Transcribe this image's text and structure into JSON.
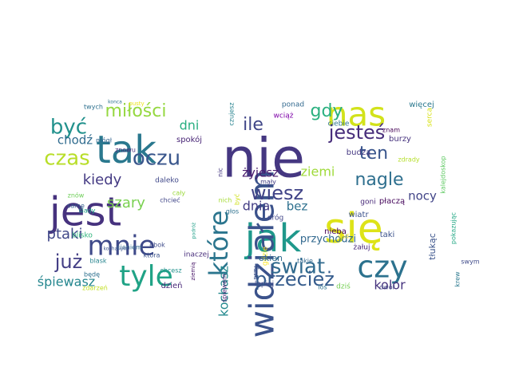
{
  "cloud": {
    "words": [
      {
        "text": "nie",
        "color": "#453781"
      },
      {
        "text": "się",
        "color": "#dde318"
      },
      {
        "text": "nas",
        "color": "#d2e21b"
      },
      {
        "text": "jest",
        "color": "#46327e"
      },
      {
        "text": "tak",
        "color": "#2a788e"
      },
      {
        "text": "jak",
        "color": "#1f988b"
      },
      {
        "text": "widziałem",
        "color": "#3b528b"
      },
      {
        "text": "czy",
        "color": "#2c728e"
      },
      {
        "text": "tyle",
        "color": "#20a386"
      },
      {
        "text": "mnie",
        "color": "#3e4989"
      },
      {
        "text": "które",
        "color": "#2b758e"
      },
      {
        "text": "oczu",
        "color": "#39568c"
      },
      {
        "text": "czas",
        "color": "#b8de29"
      },
      {
        "text": "być",
        "color": "#21918c"
      },
      {
        "text": "jesteś",
        "color": "#472d7b"
      },
      {
        "text": "świat",
        "color": "#306a8e"
      },
      {
        "text": "przecież",
        "color": "#365c8d"
      },
      {
        "text": "wiesz",
        "color": "#404387"
      },
      {
        "text": "nagle",
        "color": "#2e6f8e"
      },
      {
        "text": "ten",
        "color": "#39558c"
      },
      {
        "text": "miłości",
        "color": "#95d840"
      },
      {
        "text": "gdy",
        "color": "#2ab07f"
      },
      {
        "text": "już",
        "color": "#433e85"
      },
      {
        "text": "kiedy",
        "color": "#443a83"
      },
      {
        "text": "ile",
        "color": "#404688"
      },
      {
        "text": "ptaki",
        "color": "#3f4788"
      },
      {
        "text": "dni",
        "color": "#28ae80"
      },
      {
        "text": "szary",
        "color": "#7ad151"
      },
      {
        "text": "ziemi",
        "color": "#9fda3a"
      },
      {
        "text": "kolor",
        "color": "#46337e"
      },
      {
        "text": "kochasz",
        "color": "#23898e"
      },
      {
        "text": "żyjesz",
        "color": "#481a6c"
      },
      {
        "text": "dnia",
        "color": "#433d84"
      },
      {
        "text": "bez",
        "color": "#2d708e"
      },
      {
        "text": "nocy",
        "color": "#414487"
      },
      {
        "text": "śpiewasz",
        "color": "#24868e"
      },
      {
        "text": "chodź",
        "color": "#2f6b8e"
      },
      {
        "text": "przychodzi",
        "color": "#31688e"
      },
      {
        "text": "tłukąc",
        "color": "#3a538b"
      },
      {
        "text": "gdzie",
        "color": "#fde725"
      },
      {
        "text": "okien",
        "color": "#306a8e"
      },
      {
        "text": "nieba",
        "color": "#440154"
      },
      {
        "text": "dróg",
        "color": "#404588"
      },
      {
        "text": "wiatr",
        "color": "#3b528b"
      },
      {
        "text": "goni",
        "color": "#472878"
      },
      {
        "text": "płaczą",
        "color": "#46085c"
      },
      {
        "text": "budzą",
        "color": "#453882"
      },
      {
        "text": "burzy",
        "color": "#46327e"
      },
      {
        "text": "znam",
        "color": "#440154"
      },
      {
        "text": "taki",
        "color": "#3b528b"
      },
      {
        "text": "ciebie",
        "color": "#2c728e"
      },
      {
        "text": "wciąż",
        "color": "#7e03a8"
      },
      {
        "text": "ponad",
        "color": "#31688e"
      },
      {
        "text": "więcej",
        "color": "#2a788e"
      },
      {
        "text": "serca",
        "color": "#d8e219"
      },
      {
        "text": "kalejdoskop",
        "color": "#5ec962"
      },
      {
        "text": "zdrady",
        "color": "#b5de2b"
      },
      {
        "text": "czujesz",
        "color": "#26828e"
      },
      {
        "text": "spokój",
        "color": "#482576"
      },
      {
        "text": "znowu",
        "color": "#472d7b"
      },
      {
        "text": "pusty",
        "color": "#ece51b"
      },
      {
        "text": "mógł",
        "color": "#32648e"
      },
      {
        "text": "twych",
        "color": "#2d708e"
      },
      {
        "text": "konca",
        "color": "#2c728e"
      },
      {
        "text": "daleko",
        "color": "#3f4788"
      },
      {
        "text": "cały",
        "color": "#9bd93c"
      },
      {
        "text": "chcieć",
        "color": "#404688"
      },
      {
        "text": "nic",
        "color": "#453781"
      },
      {
        "text": "mały",
        "color": "#433e85"
      },
      {
        "text": "być",
        "color": "#d0e11c"
      },
      {
        "text": "nich",
        "color": "#a5db36"
      },
      {
        "text": "głos",
        "color": "#2d708e"
      },
      {
        "text": "obok",
        "color": "#3e4a89"
      },
      {
        "text": "cieniem",
        "color": "#31688e"
      },
      {
        "text": "blask",
        "color": "#25848e"
      },
      {
        "text": "inaczej",
        "color": "#472d7b"
      },
      {
        "text": "która",
        "color": "#3b528b"
      },
      {
        "text": "żałuj",
        "color": "#482878"
      },
      {
        "text": "sad",
        "color": "#fde725"
      },
      {
        "text": "takie",
        "color": "#31688e"
      },
      {
        "text": "pokazując",
        "color": "#22a884"
      },
      {
        "text": "swym",
        "color": "#3e4989"
      },
      {
        "text": "krew",
        "color": "#2a788e"
      },
      {
        "text": "dziś",
        "color": "#75d054"
      },
      {
        "text": "los",
        "color": "#2c728e"
      },
      {
        "text": "dwór",
        "color": "#414487"
      },
      {
        "text": "lepiej",
        "color": "#3e4989"
      },
      {
        "text": "śpiewem",
        "color": "#482173"
      },
      {
        "text": "ziemią",
        "color": "#481668"
      },
      {
        "text": "podróż",
        "color": "#1f9f88"
      },
      {
        "text": "chcesz",
        "color": "#21918c"
      },
      {
        "text": "dzień",
        "color": "#482878"
      },
      {
        "text": "zdarzeń",
        "color": "#c2df23"
      },
      {
        "text": "będę",
        "color": "#2d708e"
      },
      {
        "text": "kochanym",
        "color": "#3b528b"
      },
      {
        "text": "blisko",
        "color": "#2fb47c"
      },
      {
        "text": "ślady",
        "color": "#1fa187"
      },
      {
        "text": "znów",
        "color": "#6ece58"
      },
      {
        "text": "same",
        "color": "#365c8d"
      },
      {
        "text": "przy",
        "color": "#3b528b"
      }
    ]
  }
}
